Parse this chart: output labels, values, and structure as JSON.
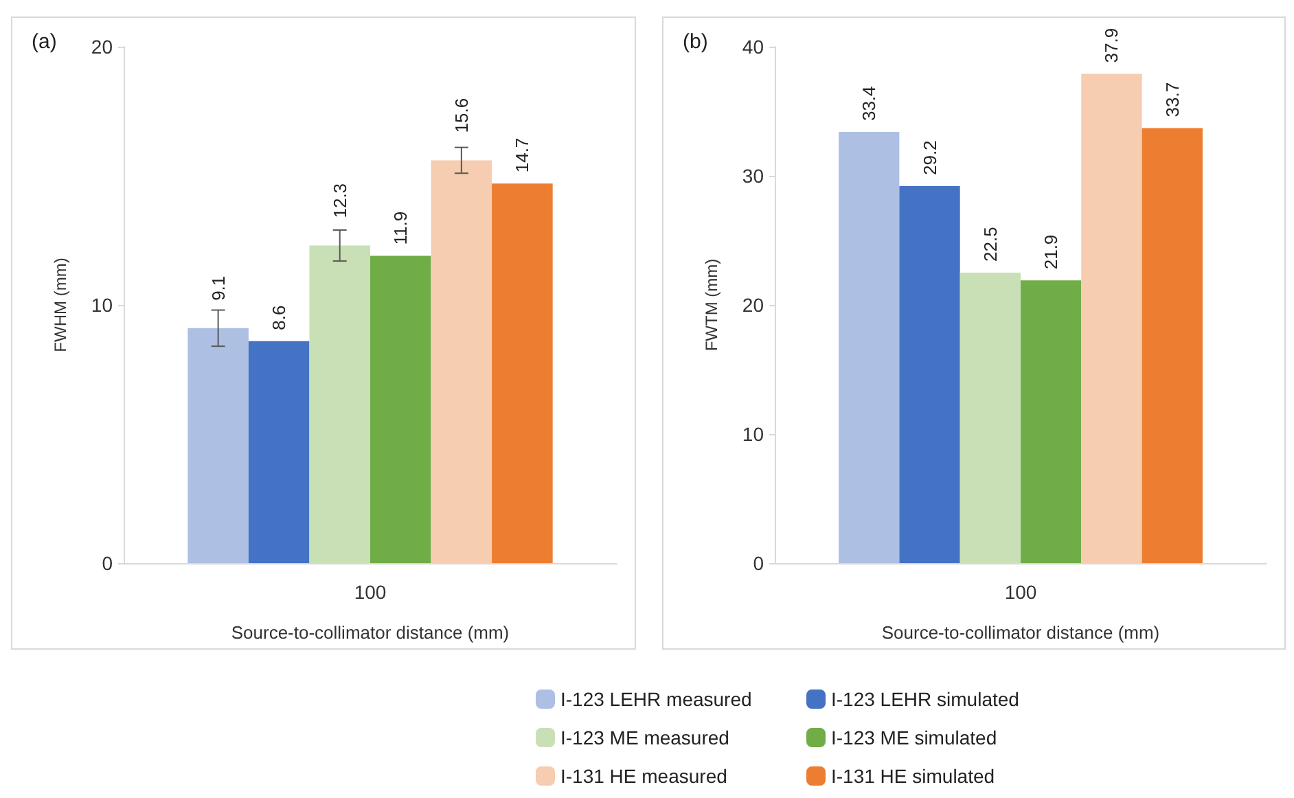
{
  "chart_data": [
    {
      "type": "bar",
      "title": "(a)",
      "xlabel": "Source-to-collimator distance (mm)",
      "ylabel": "FWHM (mm)",
      "categories": [
        "100"
      ],
      "ylim": [
        0,
        20
      ],
      "yticks": [
        0,
        10,
        20
      ],
      "grid": false,
      "legend": "bottom",
      "data_labels": true,
      "series": [
        {
          "name": "I-123 LEHR measured",
          "color": "#aebfe4",
          "values": [
            9.1
          ],
          "errors": [
            0.7
          ]
        },
        {
          "name": "I-123 LEHR simulated",
          "color": "#4472c4",
          "values": [
            8.6
          ]
        },
        {
          "name": "I-123 ME measured",
          "color": "#c9e0b6",
          "values": [
            12.3
          ],
          "errors": [
            0.6
          ]
        },
        {
          "name": "I-123 ME simulated",
          "color": "#70ad47",
          "values": [
            11.9
          ]
        },
        {
          "name": "I-131 HE measured",
          "color": "#f6cdb0",
          "values": [
            15.6
          ],
          "errors": [
            0.5
          ]
        },
        {
          "name": "I-131 HE simulated",
          "color": "#ed7d31",
          "values": [
            14.7
          ]
        }
      ]
    },
    {
      "type": "bar",
      "title": "(b)",
      "xlabel": "Source-to-collimator distance (mm)",
      "ylabel": "FWTM (mm)",
      "categories": [
        "100"
      ],
      "ylim": [
        0,
        40
      ],
      "yticks": [
        0,
        10,
        20,
        30,
        40
      ],
      "grid": false,
      "data_labels": true,
      "series": [
        {
          "color": "#aebfe4",
          "values": [
            33.4
          ]
        },
        {
          "color": "#4472c4",
          "values": [
            29.2
          ]
        },
        {
          "color": "#c9e0b6",
          "values": [
            22.5
          ]
        },
        {
          "color": "#70ad47",
          "values": [
            21.9
          ]
        },
        {
          "color": "#f6cdb0",
          "values": [
            37.9
          ]
        },
        {
          "color": "#ed7d31",
          "values": [
            33.7
          ]
        }
      ]
    }
  ]
}
